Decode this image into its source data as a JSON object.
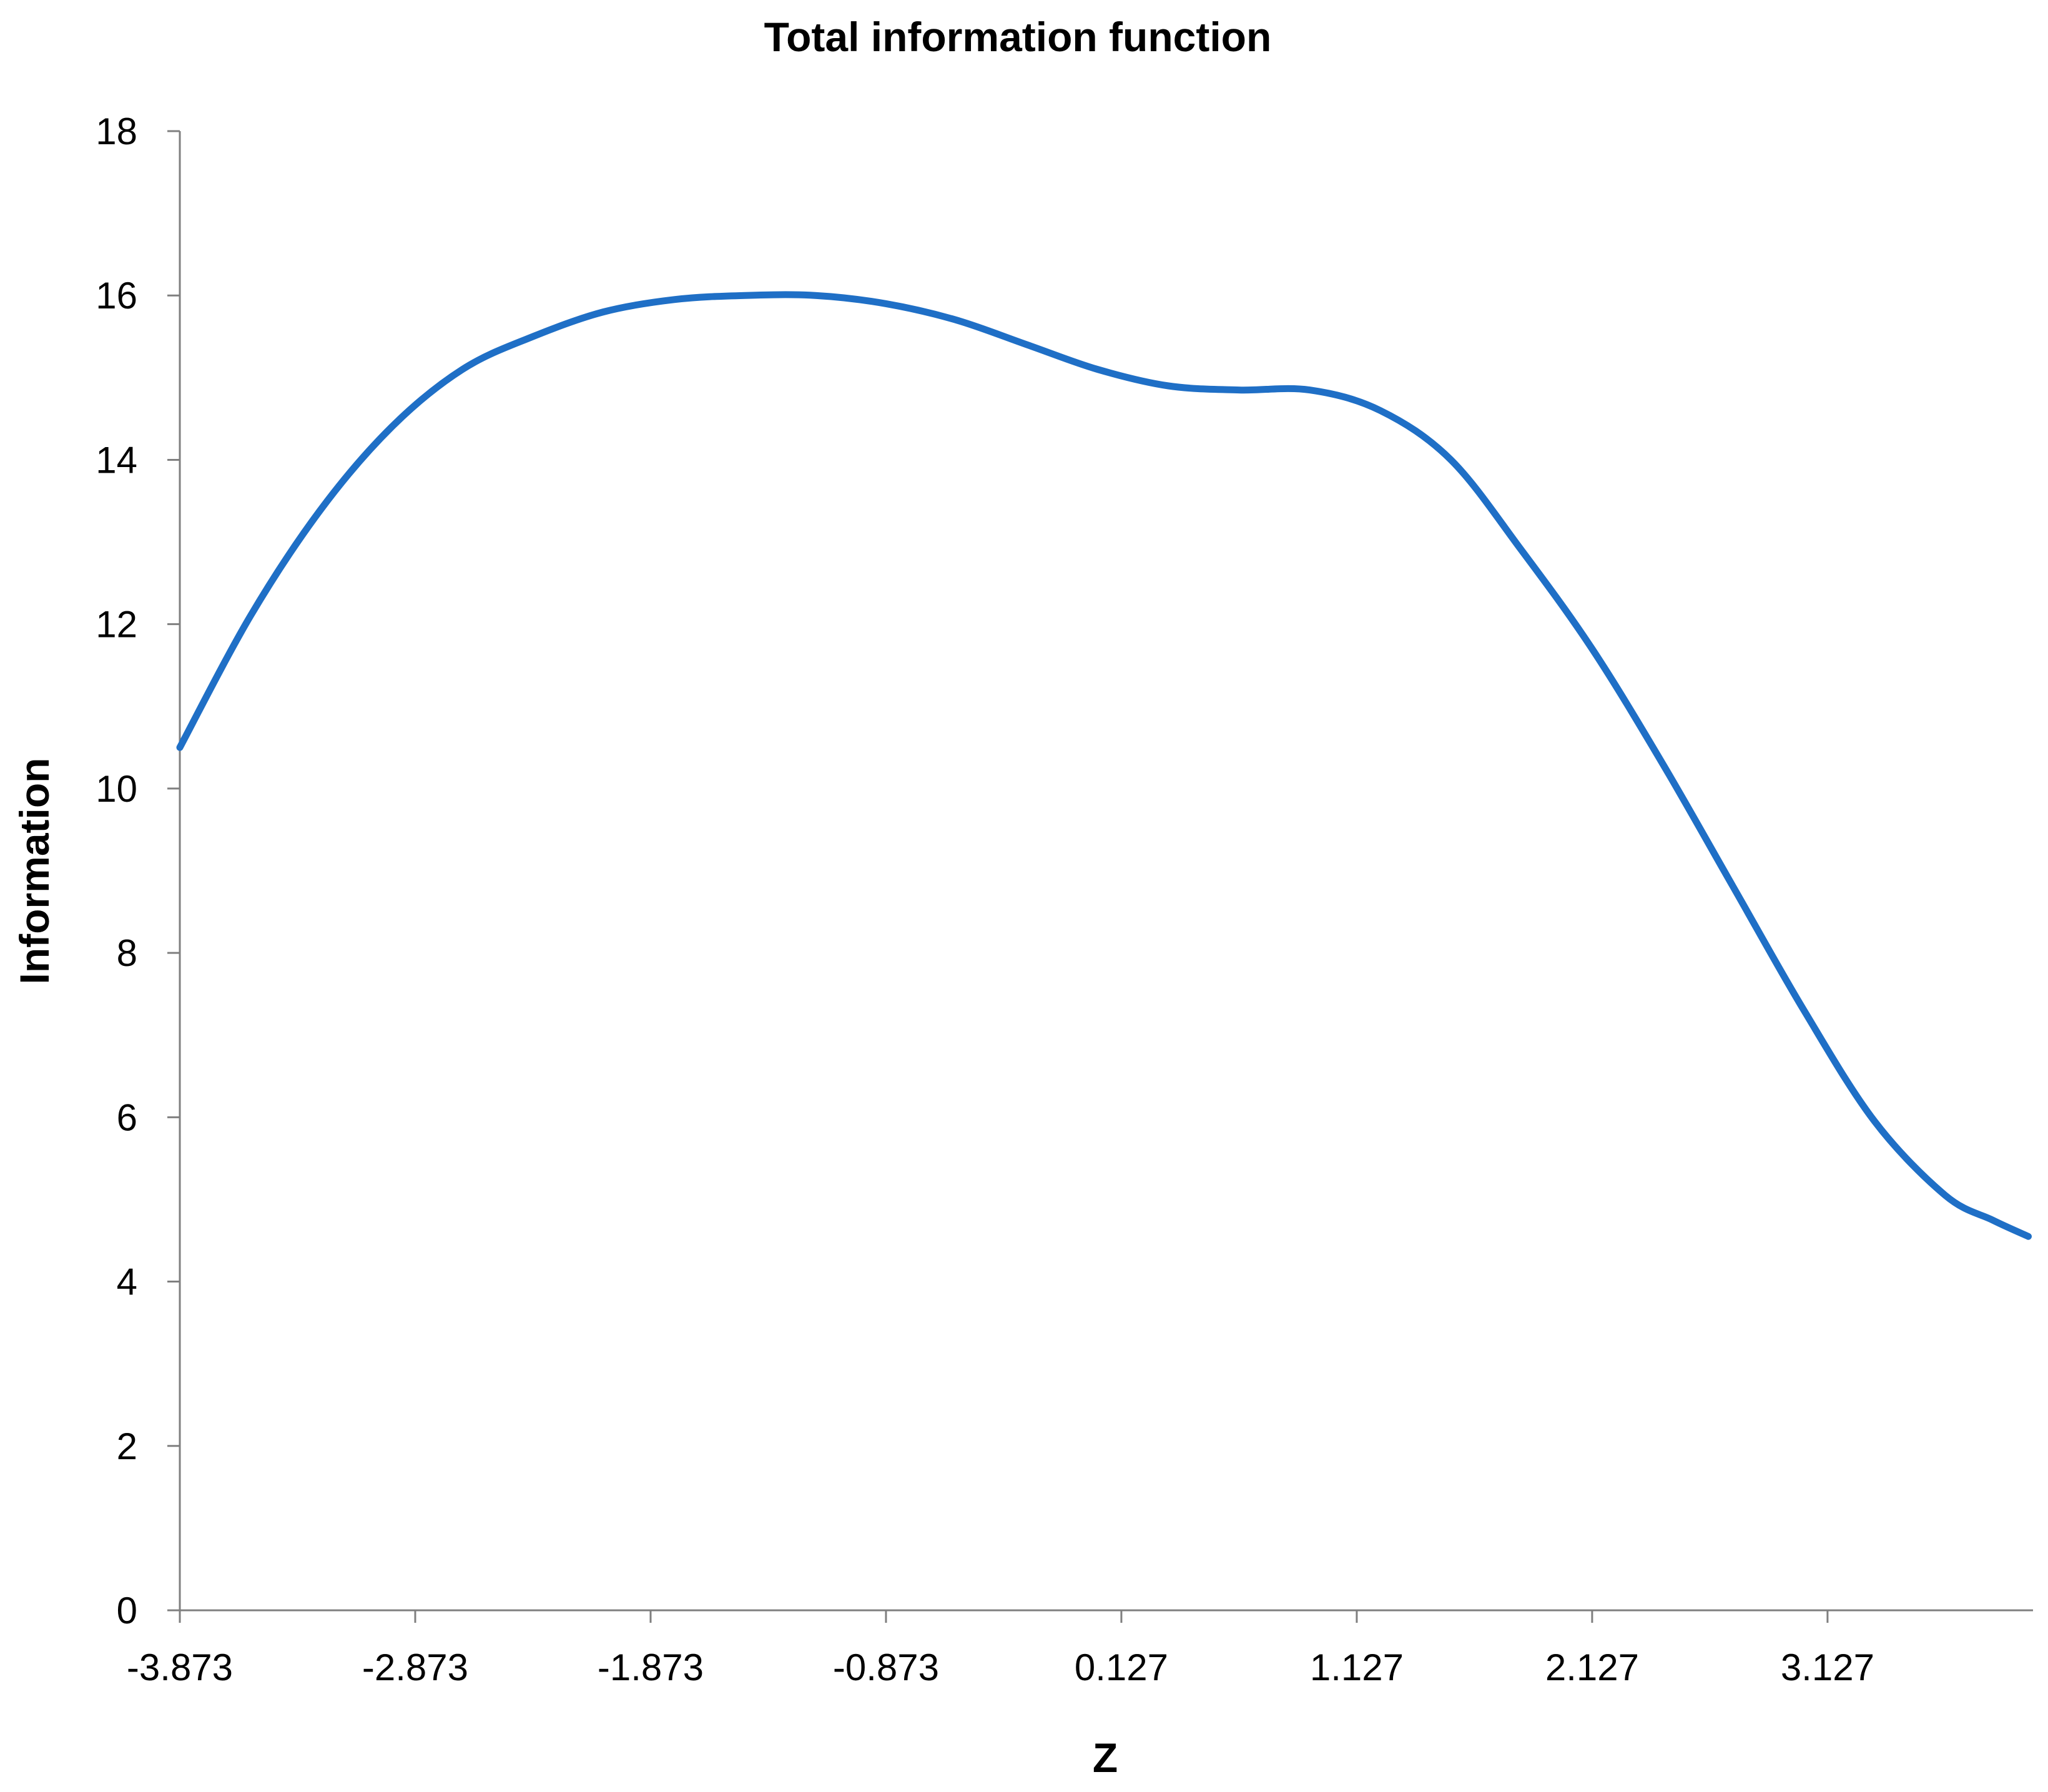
{
  "chart_data": {
    "type": "line",
    "title": "Total information function",
    "xlabel": "Z",
    "ylabel": "Information",
    "xlim": [
      -3.873,
      4.0
    ],
    "ylim": [
      0,
      18
    ],
    "x_ticks": [
      -3.873,
      -2.873,
      -1.873,
      -0.873,
      0.127,
      1.127,
      2.127,
      3.127
    ],
    "x_tick_labels": [
      "-3.873",
      "-2.873",
      "-1.873",
      "-0.873",
      "0.127",
      "1.127",
      "2.127",
      "3.127"
    ],
    "y_ticks": [
      0,
      2,
      4,
      6,
      8,
      10,
      12,
      14,
      16,
      18
    ],
    "y_tick_labels": [
      "0",
      "2",
      "4",
      "6",
      "8",
      "10",
      "12",
      "14",
      "16",
      "18"
    ],
    "grid": false,
    "legend": "none",
    "line_color": "#1F6FC6",
    "series": [
      {
        "x": [
          -3.873,
          -3.573,
          -3.273,
          -2.973,
          -2.673,
          -2.373,
          -2.073,
          -1.773,
          -1.473,
          -1.173,
          -0.873,
          -0.573,
          -0.273,
          0.027,
          0.327,
          0.627,
          0.927,
          1.227,
          1.527,
          1.827,
          2.127,
          2.427,
          2.727,
          3.027,
          3.327,
          3.627,
          3.827,
          3.98
        ],
        "values": [
          10.5,
          12.1,
          13.4,
          14.4,
          15.1,
          15.5,
          15.8,
          15.95,
          16.0,
          16.0,
          15.9,
          15.7,
          15.4,
          15.1,
          14.9,
          14.85,
          14.85,
          14.6,
          14.0,
          12.9,
          11.7,
          10.3,
          8.8,
          7.3,
          5.95,
          5.05,
          4.75,
          4.55
        ]
      }
    ]
  }
}
